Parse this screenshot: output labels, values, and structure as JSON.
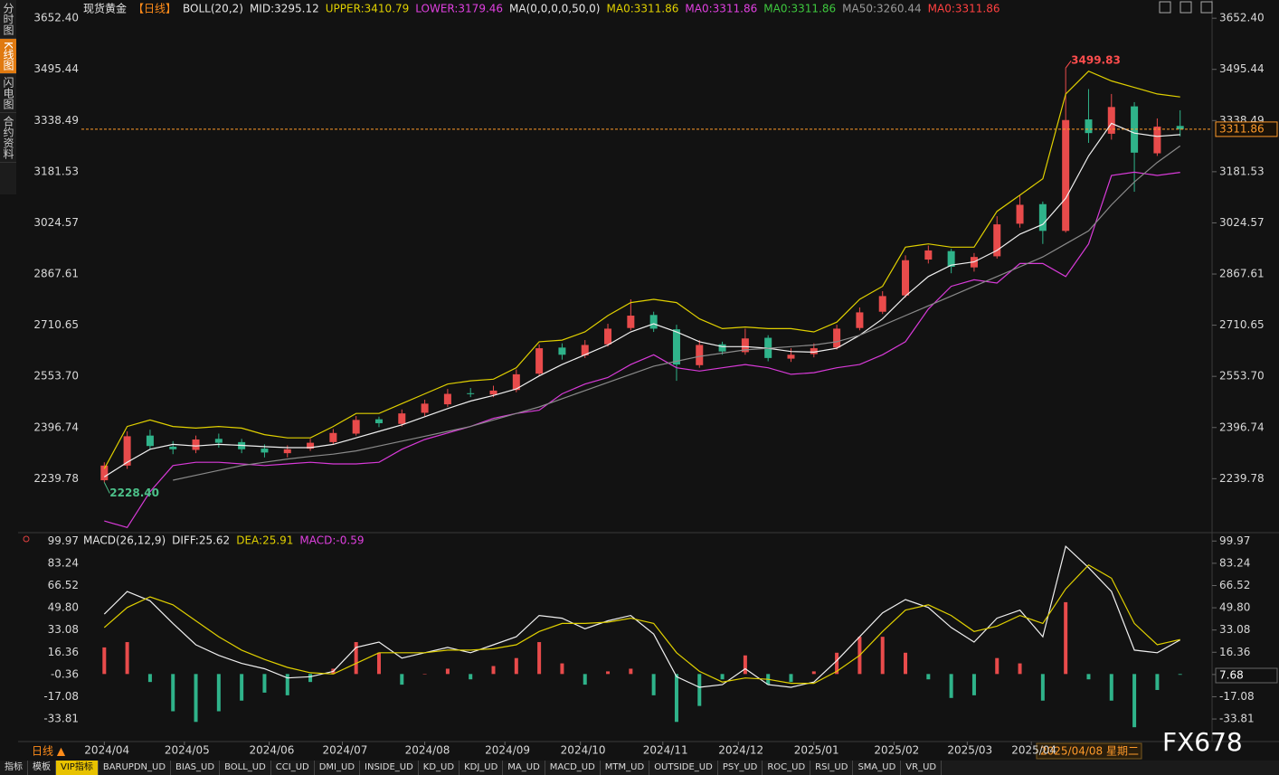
{
  "chart_data": [
    {
      "type": "candlestick",
      "header": [
        {
          "text": "现货黄金",
          "color": "#e6e6e6"
        },
        {
          "text": "【日线】",
          "color": "#ff8c1a"
        },
        {
          "text": "BOLL(20,2)",
          "color": "#e6e6e6"
        },
        {
          "text": "MID:3295.12",
          "color": "#e6e6e6"
        },
        {
          "text": "UPPER:3410.79",
          "color": "#e0d000"
        },
        {
          "text": "LOWER:3179.46",
          "color": "#e040e0"
        },
        {
          "text": "MA(0,0,0,0,50,0)",
          "color": "#e6e6e6"
        },
        {
          "text": "MA0:3311.86",
          "color": "#e0d000"
        },
        {
          "text": "MA0:3311.86",
          "color": "#e040e0"
        },
        {
          "text": "MA0:3311.86",
          "color": "#3ec83e"
        },
        {
          "text": "MA50:3260.44",
          "color": "#9a9a9a"
        },
        {
          "text": "MA0:3311.86",
          "color": "#ff4040"
        }
      ],
      "xlim": [
        -1,
        48
      ],
      "xticks": [
        {
          "value": 0,
          "label": "2024/04"
        },
        {
          "value": 3.5,
          "label": "2024/05"
        },
        {
          "value": 7.2,
          "label": "2024/06"
        },
        {
          "value": 10.4,
          "label": "2024/07"
        },
        {
          "value": 14,
          "label": "2024/08"
        },
        {
          "value": 17.5,
          "label": "2024/09"
        },
        {
          "value": 20.8,
          "label": "2024/10"
        },
        {
          "value": 24.4,
          "label": "2024/11"
        },
        {
          "value": 27.7,
          "label": "2024/12"
        },
        {
          "value": 31,
          "label": "2025/01"
        },
        {
          "value": 34.5,
          "label": "2025/02"
        },
        {
          "value": 37.7,
          "label": "2025/03"
        },
        {
          "value": 40.5,
          "label": "2025/04"
        }
      ],
      "open": [
        2235,
        2280,
        2372,
        2338,
        2328,
        2362,
        2352,
        2332,
        2318,
        2332,
        2352,
        2378,
        2422,
        2408,
        2442,
        2468,
        2502,
        2498,
        2512,
        2562,
        2642,
        2618,
        2652,
        2702,
        2742,
        2698,
        2588,
        2652,
        2628,
        2672,
        2608,
        2622,
        2642,
        2702,
        2752,
        2802,
        2912,
        2938,
        2888,
        2922,
        3022,
        3082,
        3000,
        3342,
        3298,
        3382,
        3238,
        3322
      ],
      "high": [
        2290,
        2385,
        2390,
        2355,
        2372,
        2378,
        2362,
        2345,
        2342,
        2362,
        2392,
        2432,
        2430,
        2452,
        2482,
        2515,
        2518,
        2525,
        2575,
        2652,
        2655,
        2665,
        2715,
        2790,
        2752,
        2712,
        2665,
        2660,
        2700,
        2680,
        2640,
        2655,
        2712,
        2765,
        2815,
        2925,
        2955,
        2945,
        2932,
        3045,
        3110,
        3090,
        3499.83,
        3435,
        3420,
        3395,
        3345,
        3370
      ],
      "low": [
        2228.4,
        2270,
        2330,
        2315,
        2318,
        2335,
        2318,
        2305,
        2305,
        2325,
        2345,
        2372,
        2398,
        2400,
        2432,
        2460,
        2490,
        2490,
        2505,
        2555,
        2605,
        2610,
        2645,
        2695,
        2690,
        2540,
        2580,
        2620,
        2620,
        2600,
        2598,
        2612,
        2636,
        2695,
        2745,
        2795,
        2900,
        2870,
        2875,
        2915,
        3010,
        2960,
        2995,
        3270,
        3280,
        3120,
        3230,
        3290
      ],
      "close": [
        2280,
        2370,
        2340,
        2330,
        2360,
        2350,
        2330,
        2320,
        2330,
        2350,
        2380,
        2420,
        2410,
        2440,
        2470,
        2500,
        2500,
        2510,
        2560,
        2640,
        2620,
        2650,
        2700,
        2740,
        2700,
        2590,
        2650,
        2630,
        2670,
        2610,
        2620,
        2640,
        2700,
        2750,
        2800,
        2910,
        2940,
        2890,
        2920,
        3020,
        3080,
        3000,
        3340,
        3300,
        3380,
        3240,
        3320,
        3311.86
      ],
      "up_color": "#e84b4b",
      "down_color": "#2fb38a",
      "series": [
        {
          "color": "#f0f0f0",
          "values": [
            2245,
            2290,
            2330,
            2345,
            2340,
            2345,
            2342,
            2338,
            2335,
            2335,
            2345,
            2365,
            2385,
            2405,
            2430,
            2455,
            2478,
            2495,
            2515,
            2555,
            2590,
            2620,
            2650,
            2690,
            2715,
            2690,
            2660,
            2645,
            2645,
            2640,
            2630,
            2628,
            2640,
            2680,
            2730,
            2800,
            2860,
            2895,
            2905,
            2940,
            2990,
            3020,
            3100,
            3230,
            3330,
            3300,
            3290,
            3295.12
          ]
        },
        {
          "color": "#e0d000",
          "values": [
            2270,
            2400,
            2420,
            2400,
            2395,
            2400,
            2395,
            2375,
            2365,
            2365,
            2400,
            2440,
            2440,
            2470,
            2500,
            2530,
            2540,
            2545,
            2580,
            2660,
            2665,
            2690,
            2740,
            2780,
            2790,
            2780,
            2730,
            2700,
            2705,
            2700,
            2700,
            2690,
            2720,
            2790,
            2830,
            2950,
            2960,
            2950,
            2950,
            3060,
            3110,
            3160,
            3420,
            3490,
            3460,
            3440,
            3420,
            3410.79
          ]
        },
        {
          "color": "#d83ad8",
          "values": [
            2110,
            2090,
            2200,
            2280,
            2290,
            2290,
            2285,
            2280,
            2285,
            2290,
            2285,
            2285,
            2290,
            2330,
            2360,
            2380,
            2400,
            2425,
            2440,
            2450,
            2500,
            2530,
            2550,
            2590,
            2620,
            2580,
            2570,
            2580,
            2590,
            2580,
            2560,
            2565,
            2580,
            2590,
            2620,
            2660,
            2760,
            2830,
            2850,
            2840,
            2900,
            2900,
            2860,
            2960,
            3170,
            3180,
            3170,
            3179.46
          ]
        },
        {
          "color": "#8a8a8a",
          "values": [
            null,
            null,
            null,
            2235,
            2250,
            2265,
            2280,
            2290,
            2300,
            2308,
            2315,
            2325,
            2340,
            2355,
            2370,
            2385,
            2400,
            2420,
            2440,
            2460,
            2485,
            2510,
            2535,
            2560,
            2585,
            2600,
            2615,
            2625,
            2635,
            2640,
            2645,
            2650,
            2660,
            2680,
            2710,
            2740,
            2770,
            2800,
            2830,
            2860,
            2890,
            2920,
            2960,
            3000,
            3080,
            3150,
            3210,
            3260.44
          ]
        }
      ],
      "annotations": [
        {
          "value": 3499.83,
          "label": "3499.83",
          "color": "#ff4d4d"
        },
        {
          "value": 2228.4,
          "label": "2228.40",
          "color": "#4cc089"
        }
      ],
      "ylim": [
        2077,
        3700
      ],
      "yticks": [
        {
          "value": 3652.4,
          "label": "3652.40"
        },
        3495.44,
        3338.49,
        3181.53,
        3024.57,
        2867.61,
        2710.65,
        {
          "value": 2553.7,
          "label": "2553.70"
        },
        2396.74,
        2239.78
      ],
      "grid": false
    },
    {
      "type": "macd",
      "header": [
        {
          "text": "MACD(26,12,9)",
          "color": "#e6e6e6"
        },
        {
          "text": "DIFF:25.62",
          "color": "#e6e6e6"
        },
        {
          "text": "DEA:25.91",
          "color": "#e0d000"
        },
        {
          "text": "MACD:-0.59",
          "color": "#e040e0"
        }
      ],
      "xlim": [
        -1,
        48
      ],
      "series": [
        {
          "color": "#f0f0f0",
          "values": [
            45,
            62,
            55,
            38,
            22,
            14,
            8,
            4,
            -3,
            -2,
            2,
            20,
            24,
            12,
            16,
            20,
            16,
            22,
            28,
            44,
            42,
            34,
            40,
            44,
            30,
            -2,
            -10,
            -8,
            4,
            -8,
            -10,
            -6,
            10,
            28,
            46,
            56,
            50,
            35,
            24,
            42,
            48,
            28,
            96,
            80,
            62,
            18,
            16,
            25.62
          ]
        },
        {
          "color": "#e0d000",
          "values": [
            35,
            50,
            58,
            52,
            40,
            28,
            18,
            11,
            5,
            1,
            0,
            8,
            16,
            16,
            16,
            18,
            18,
            19,
            22,
            32,
            38,
            38,
            39,
            42,
            38,
            16,
            2,
            -6,
            -3,
            -4,
            -7,
            -7,
            2,
            14,
            32,
            48,
            52,
            44,
            32,
            36,
            44,
            38,
            64,
            82,
            72,
            38,
            22,
            25.91
          ]
        }
      ],
      "histogram": [
        20,
        24,
        -6,
        -28,
        -36,
        -28,
        -20,
        -14,
        -16,
        -6,
        4,
        24,
        16,
        -8,
        0,
        4,
        -4,
        6,
        12,
        24,
        8,
        -8,
        2,
        4,
        -16,
        -36,
        -24,
        -4,
        14,
        -8,
        -6,
        2,
        16,
        28,
        28,
        16,
        -4,
        -18,
        -16,
        12,
        8,
        -20,
        54,
        -4,
        -20,
        -40,
        -12,
        -0.59
      ],
      "up_color": "#e84b4b",
      "down_color": "#2fb38a",
      "cursor_value": "7.68",
      "ylim": [
        -49.4,
        105.6
      ],
      "yticks": [
        99.97,
        83.24,
        66.52,
        {
          "value": 49.8,
          "label": "49.80"
        },
        33.08,
        16.36,
        -0.36,
        -17.08,
        -33.81
      ],
      "grid": false
    }
  ],
  "sidebar": [
    "分时图",
    "K线图",
    "闪电图",
    "合约资料"
  ],
  "period_button": "日线 ▲",
  "cursor_date": "2025/04/08 星期二",
  "watermark": "FX678",
  "tabs": [
    "指标",
    "模板",
    "VIP指标",
    "BARUPDN_UD",
    "BIAS_UD",
    "BOLL_UD",
    "CCI_UD",
    "DMI_UD",
    "INSIDE_UD",
    "KD_UD",
    "KDJ_UD",
    "MA_UD",
    "MACD_UD",
    "MTM_UD",
    "OUTSIDE_UD",
    "PSY_UD",
    "ROC_UD",
    "RSI_UD",
    "SMA_UD",
    "VR_UD"
  ]
}
